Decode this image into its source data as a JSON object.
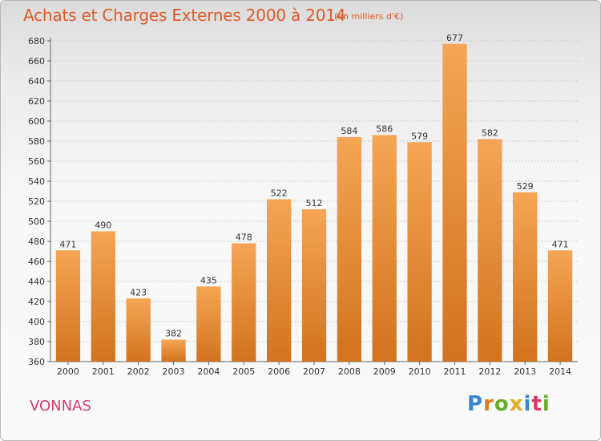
{
  "header": {
    "title": "Achats et Charges Externes 2000 à 2014",
    "subtitle": "(en milliers d'€)"
  },
  "footer": {
    "city": "VONNAS",
    "logo": [
      "P",
      "r",
      "o",
      "x",
      "i",
      "t",
      "i"
    ]
  },
  "colors": {
    "bar_top": "#f5a555",
    "bar_bottom": "#d2731e",
    "title": "#e05a2a",
    "city": "#d63a6e"
  },
  "chart_data": {
    "type": "bar",
    "title": "Achats et Charges Externes 2000 à 2014",
    "subtitle": "(en milliers d'€)",
    "xlabel": "",
    "ylabel": "",
    "categories": [
      "2000",
      "2001",
      "2002",
      "2003",
      "2004",
      "2005",
      "2006",
      "2007",
      "2008",
      "2009",
      "2010",
      "2011",
      "2012",
      "2013",
      "2014"
    ],
    "values": [
      471,
      490,
      423,
      382,
      435,
      478,
      522,
      512,
      584,
      586,
      579,
      677,
      582,
      529,
      471
    ],
    "ylim": [
      360,
      680
    ],
    "yticks": [
      360,
      380,
      400,
      420,
      440,
      460,
      480,
      500,
      520,
      540,
      560,
      580,
      600,
      620,
      640,
      660,
      680
    ],
    "grid": true,
    "legend": "none"
  }
}
